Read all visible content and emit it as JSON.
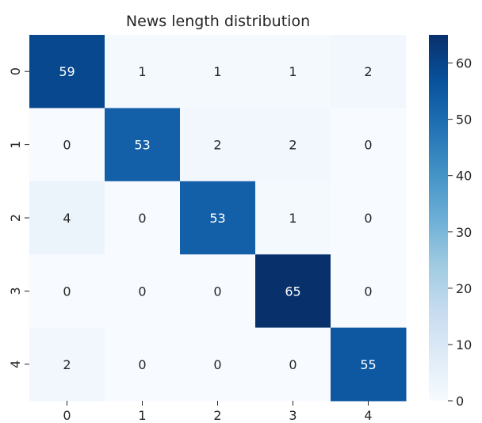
{
  "chart_data": {
    "type": "heatmap",
    "title": "News length distribution",
    "xlabel": "",
    "ylabel": "",
    "x_categories": [
      "0",
      "1",
      "2",
      "3",
      "4"
    ],
    "y_categories": [
      "0",
      "1",
      "2",
      "3",
      "4"
    ],
    "values": [
      [
        59,
        1,
        1,
        1,
        2
      ],
      [
        0,
        53,
        2,
        2,
        0
      ],
      [
        4,
        0,
        53,
        1,
        0
      ],
      [
        0,
        0,
        0,
        65,
        0
      ],
      [
        2,
        0,
        0,
        0,
        55
      ]
    ],
    "colorbar": {
      "colormap": "Blues",
      "range": [
        0,
        65
      ],
      "ticks": [
        0,
        10,
        20,
        30,
        40,
        50,
        60
      ]
    },
    "grid": false,
    "legend": "right"
  }
}
